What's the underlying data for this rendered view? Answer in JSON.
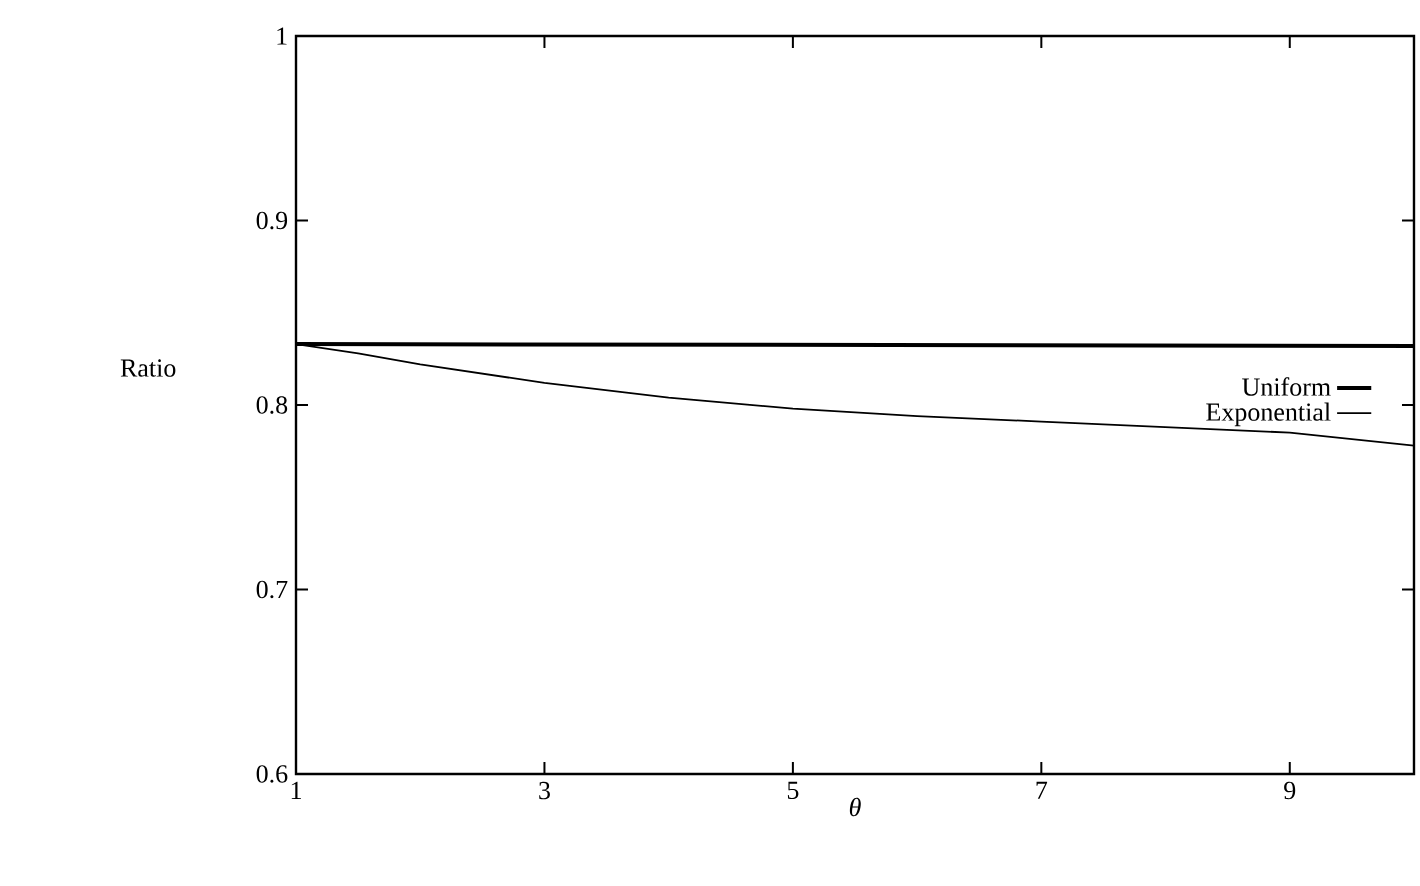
{
  "chart_data": {
    "type": "line",
    "xlabel": "θ",
    "ylabel": "Ratio",
    "xlim": [
      1,
      10
    ],
    "ylim": [
      0.6,
      1
    ],
    "xticks": [
      1,
      3,
      5,
      7,
      9
    ],
    "yticks": [
      0.6,
      0.7,
      0.8,
      0.9,
      1
    ],
    "legend": "right",
    "grid": false,
    "series": [
      {
        "name": "Uniform",
        "color": "#000000",
        "x": [
          1,
          10
        ],
        "values": [
          0.833,
          0.832
        ]
      },
      {
        "name": "Exponential",
        "color": "#000000",
        "x": [
          1,
          1.5,
          2,
          3,
          4,
          5,
          6,
          7,
          8,
          9,
          10
        ],
        "values": [
          0.833,
          0.828,
          0.822,
          0.812,
          0.804,
          0.798,
          0.794,
          0.791,
          0.788,
          0.785,
          0.778
        ]
      }
    ]
  }
}
